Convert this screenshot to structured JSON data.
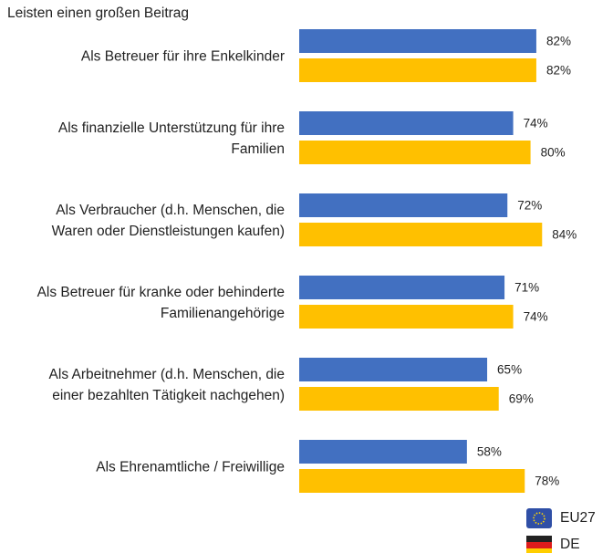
{
  "chart_data": {
    "type": "bar",
    "orientation": "horizontal",
    "title": "Leisten einen großen Beitrag",
    "categories": [
      "Als Betreuer für ihre Enkelkinder",
      "Als finanzielle Unterstützung für ihre\nFamilien",
      "Als Verbraucher (d.h. Menschen, die\nWaren oder Dienstleistungen kaufen)",
      "Als Betreuer für kranke oder behinderte\nFamilienangehörige",
      "Als Arbeitnehmer (d.h. Menschen, die\neiner bezahlten Tätigkeit nachgehen)",
      "Als Ehrenamtliche / Freiwillige"
    ],
    "series": [
      {
        "name": "EU27",
        "color": "#4270c1",
        "values": [
          82,
          74,
          72,
          71,
          65,
          58
        ],
        "value_labels": [
          "82%",
          "74%",
          "72%",
          "71%",
          "65%",
          "58%"
        ]
      },
      {
        "name": "DE",
        "color": "#ffc000",
        "values": [
          82,
          80,
          84,
          74,
          69,
          78
        ],
        "value_labels": [
          "82%",
          "80%",
          "84%",
          "74%",
          "69%",
          "78%"
        ]
      }
    ]
  }
}
